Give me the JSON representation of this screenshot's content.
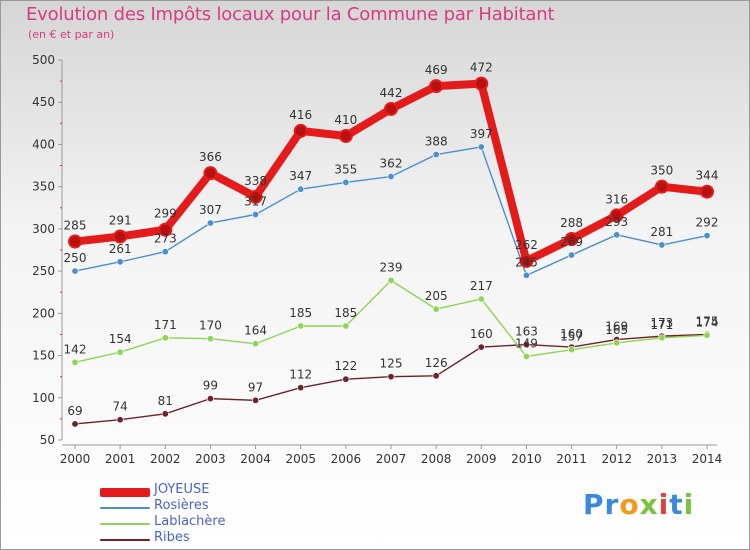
{
  "title": "Evolution des Impôts locaux pour la Commune par Habitant",
  "subtitle": "(en € et par an)",
  "logo_text": "Proxiti",
  "chart_data": {
    "type": "line",
    "title": "Evolution des Impôts locaux pour la Commune par Habitant",
    "subtitle": "(en € et par an)",
    "x": [
      2000,
      2001,
      2002,
      2003,
      2004,
      2005,
      2006,
      2007,
      2008,
      2009,
      2010,
      2011,
      2012,
      2013,
      2014
    ],
    "ylim": [
      50,
      500
    ],
    "yticks": [
      50,
      100,
      150,
      200,
      250,
      300,
      350,
      400,
      450,
      500
    ],
    "grid": false,
    "legend_position": "bottom-left",
    "series": [
      {
        "name": "JOYEUSE",
        "color": "#e31b1b",
        "emphasis": true,
        "values": [
          285,
          291,
          299,
          366,
          338,
          416,
          410,
          442,
          469,
          472,
          262,
          288,
          316,
          350,
          344
        ],
        "value_labels": [
          "285",
          "291",
          "299",
          "366",
          "338",
          "416",
          "410",
          "442",
          "469",
          "472",
          "262",
          "288",
          "316",
          "350",
          "344"
        ]
      },
      {
        "name": "Rosières",
        "color": "#4a8fd0",
        "values": [
          250,
          261,
          273,
          307,
          317,
          347,
          355,
          362,
          388,
          397,
          245,
          269,
          293,
          281,
          292
        ],
        "value_labels": [
          "250",
          "261",
          "273",
          "307",
          "317",
          "347",
          "355",
          "362",
          "388",
          "397",
          "245",
          "269",
          "293",
          "281",
          "292"
        ]
      },
      {
        "name": "Lablachère",
        "color": "#8fd455",
        "values": [
          142,
          154,
          171,
          170,
          164,
          185,
          185,
          239,
          205,
          217,
          149,
          157,
          165,
          171,
          174
        ],
        "value_labels": [
          "142",
          "154",
          "171",
          "170",
          "164",
          "185",
          "185",
          "239",
          "205",
          "217",
          "149",
          "157",
          "165",
          "171",
          "174"
        ]
      },
      {
        "name": "Ribes",
        "color": "#6e2328",
        "values": [
          69,
          74,
          81,
          99,
          97,
          112,
          122,
          125,
          126,
          160,
          163,
          160,
          169,
          173,
          175
        ],
        "value_labels": [
          "69",
          "74",
          "81",
          "99",
          "97",
          "112",
          "122",
          "125",
          "126",
          "160",
          "163",
          "160",
          "169",
          "173",
          "175"
        ]
      }
    ]
  }
}
